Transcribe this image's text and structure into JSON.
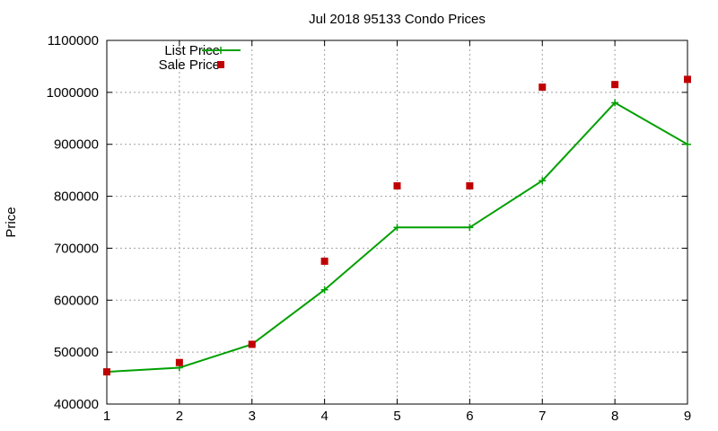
{
  "chart_data": {
    "type": "line",
    "title": "Jul 2018 95133 Condo Prices",
    "xlabel": "",
    "ylabel": "Price",
    "xlim": [
      1,
      9
    ],
    "ylim": [
      400000,
      1100000
    ],
    "x_ticks": [
      "1",
      "2",
      "3",
      "4",
      "5",
      "6",
      "7",
      "8",
      "9"
    ],
    "y_ticks": [
      "400000",
      "500000",
      "600000",
      "700000",
      "800000",
      "900000",
      "1000000",
      "1100000"
    ],
    "grid": true,
    "legend_position": "top-left",
    "series": [
      {
        "name": "List Price",
        "style": "line-with-plus-markers",
        "color": "#00a000",
        "x": [
          1,
          2,
          3,
          4,
          5,
          6,
          7,
          8,
          9
        ],
        "y": [
          462000,
          470000,
          515000,
          620000,
          740000,
          740000,
          830000,
          980000,
          900000
        ]
      },
      {
        "name": "Sale Price",
        "style": "square-points",
        "color": "#c00000",
        "x": [
          1,
          2,
          3,
          4,
          5,
          6,
          7,
          8,
          9
        ],
        "y": [
          462000,
          480000,
          515000,
          675000,
          820000,
          820000,
          1010000,
          1015000,
          1025000
        ]
      }
    ]
  }
}
